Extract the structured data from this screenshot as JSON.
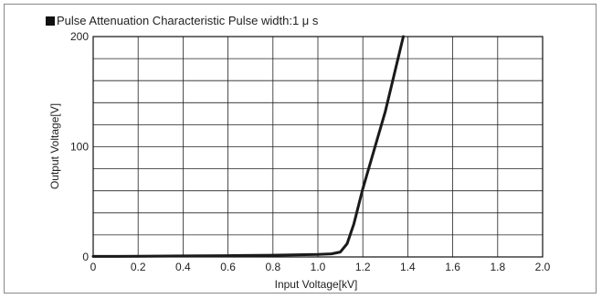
{
  "chart_data": {
    "type": "line",
    "title": "Pulse Attenuation Characteristic  Pulse width:1 μ s",
    "xlabel": "Input Voltage[kV]",
    "ylabel": "Output Voltage[V]",
    "xlim": [
      0,
      2.0
    ],
    "ylim": [
      0,
      200
    ],
    "x_ticks": [
      "0",
      "0.2",
      "0.4",
      "0.6",
      "0.8",
      "1.0",
      "1.2",
      "1.4",
      "1.6",
      "1.8",
      "2.0"
    ],
    "y_ticks": [
      "0",
      "100",
      "200"
    ],
    "grid": true,
    "series": [
      {
        "points": [
          [
            0.0,
            0.5
          ],
          [
            0.2,
            0.6
          ],
          [
            0.4,
            0.9
          ],
          [
            0.6,
            1.2
          ],
          [
            0.8,
            1.6
          ],
          [
            1.0,
            2.2
          ],
          [
            1.06,
            2.8
          ],
          [
            1.1,
            4.5
          ],
          [
            1.13,
            12
          ],
          [
            1.16,
            30
          ],
          [
            1.2,
            62
          ],
          [
            1.3,
            132
          ],
          [
            1.38,
            200
          ]
        ]
      }
    ],
    "colors": {
      "line": "#1a1a1a",
      "grid": "#222222",
      "title_marker": "#111111"
    }
  }
}
